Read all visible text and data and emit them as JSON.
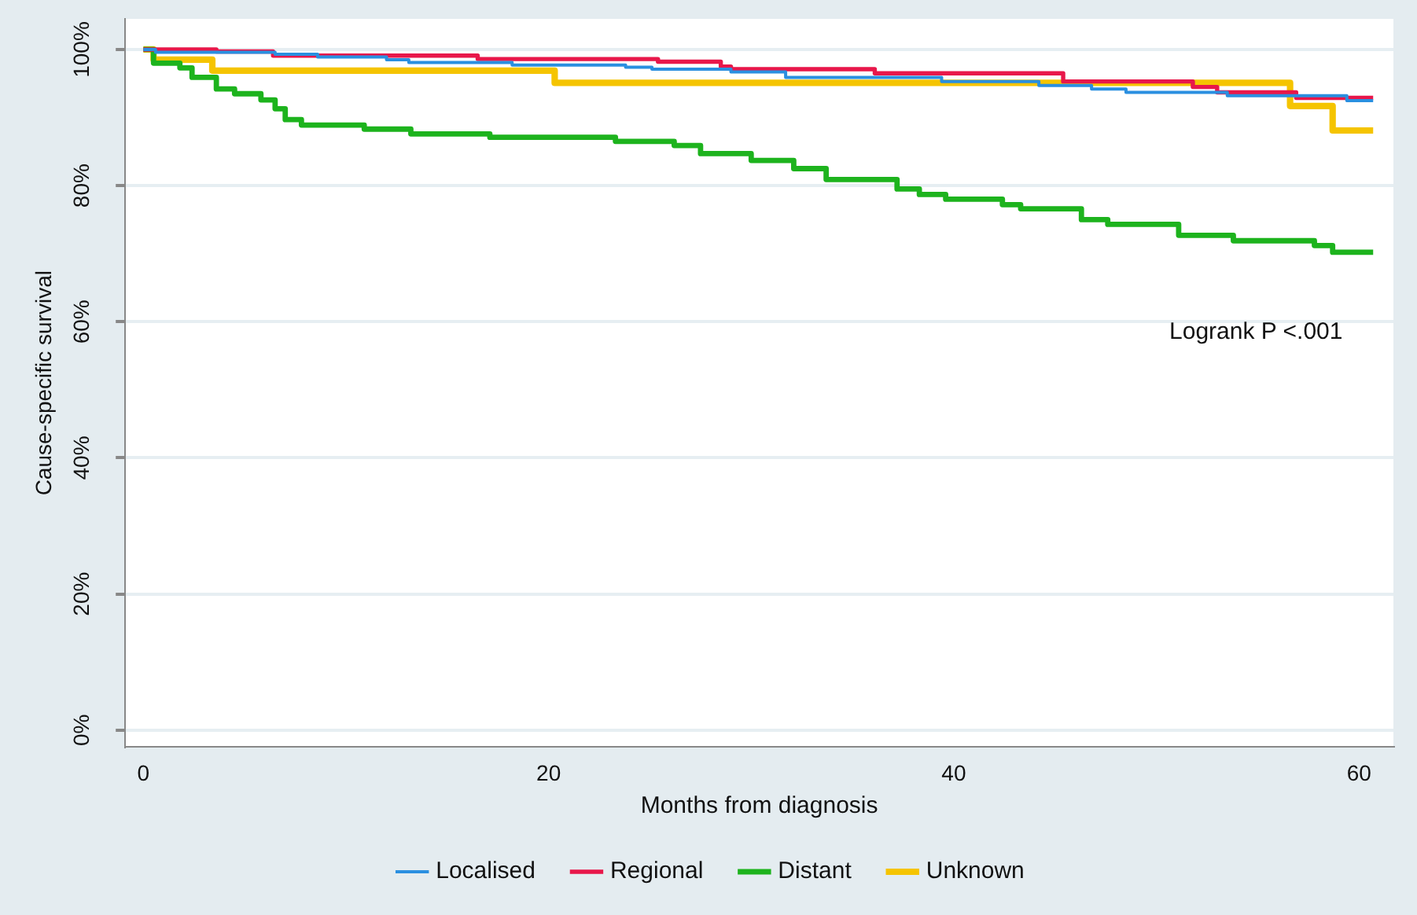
{
  "chart_data": {
    "type": "step",
    "xlabel": "Months from diagnosis",
    "ylabel": "Cause-specific survival",
    "xlim": [
      -0.9,
      61.7
    ],
    "xticks": [
      0,
      20,
      40,
      60
    ],
    "ylim": [
      -2.5,
      104.5
    ],
    "yticks": [
      {
        "value": 0,
        "label": "0%"
      },
      {
        "value": 20,
        "label": "20%"
      },
      {
        "value": 40,
        "label": "40%"
      },
      {
        "value": 60,
        "label": "60%"
      },
      {
        "value": 80,
        "label": "80%"
      },
      {
        "value": 100,
        "label": "100%"
      }
    ],
    "grid": "y",
    "legend": "bottom",
    "marker": "none",
    "line_style": "solid",
    "annotations": [
      "Logrank P <.001"
    ],
    "series": [
      {
        "name": "Localised",
        "color": "#2a8fe0",
        "x": [
          0,
          0.6,
          6.5,
          8.6,
          12,
          13.1,
          18.2,
          23.8,
          25.1,
          29,
          31.7,
          39.4,
          44.2,
          46.8,
          48.5,
          53.5,
          59.4,
          60.7
        ],
        "values": [
          100,
          99.6,
          99.3,
          98.9,
          98.5,
          98.1,
          97.7,
          97.4,
          97.1,
          96.7,
          95.9,
          95.3,
          94.7,
          94.2,
          93.7,
          93.2,
          92.5,
          92.5
        ]
      },
      {
        "name": "Regional",
        "color": "#e8174a",
        "x": [
          0,
          3.6,
          6.4,
          16.5,
          25.4,
          28.5,
          29,
          36.1,
          45.4,
          51.8,
          53,
          56.9,
          60.7
        ],
        "values": [
          100,
          99.7,
          99.1,
          98.6,
          98.2,
          97.5,
          97.1,
          96.5,
          95.3,
          94.5,
          93.7,
          92.9,
          92.9
        ]
      },
      {
        "name": "Distant",
        "color": "#1db31d",
        "x": [
          0,
          0.5,
          1.8,
          2.4,
          3.6,
          4.5,
          5.8,
          6.5,
          7,
          7.8,
          10.9,
          13.2,
          17.1,
          23.3,
          26.2,
          27.5,
          30,
          32.1,
          33.7,
          37.2,
          38.3,
          39.6,
          42.4,
          43.3,
          46.3,
          47.6,
          51.1,
          53.8,
          57.8,
          58.7,
          60.7
        ],
        "values": [
          100,
          98,
          97.3,
          95.9,
          94.2,
          93.5,
          92.6,
          91.3,
          89.7,
          88.9,
          88.3,
          87.6,
          87.1,
          86.5,
          85.9,
          84.7,
          83.7,
          82.5,
          80.9,
          79.5,
          78.7,
          78,
          77.2,
          76.6,
          75,
          74.3,
          72.7,
          71.9,
          71.2,
          70.2,
          70.2
        ]
      },
      {
        "name": "Unknown",
        "color": "#f5c400",
        "x": [
          0,
          0.5,
          3.4,
          20.3,
          56.6,
          58.7,
          60.7
        ],
        "values": [
          100,
          98.5,
          96.9,
          95.1,
          91.7,
          88.1,
          88.1
        ]
      }
    ]
  }
}
